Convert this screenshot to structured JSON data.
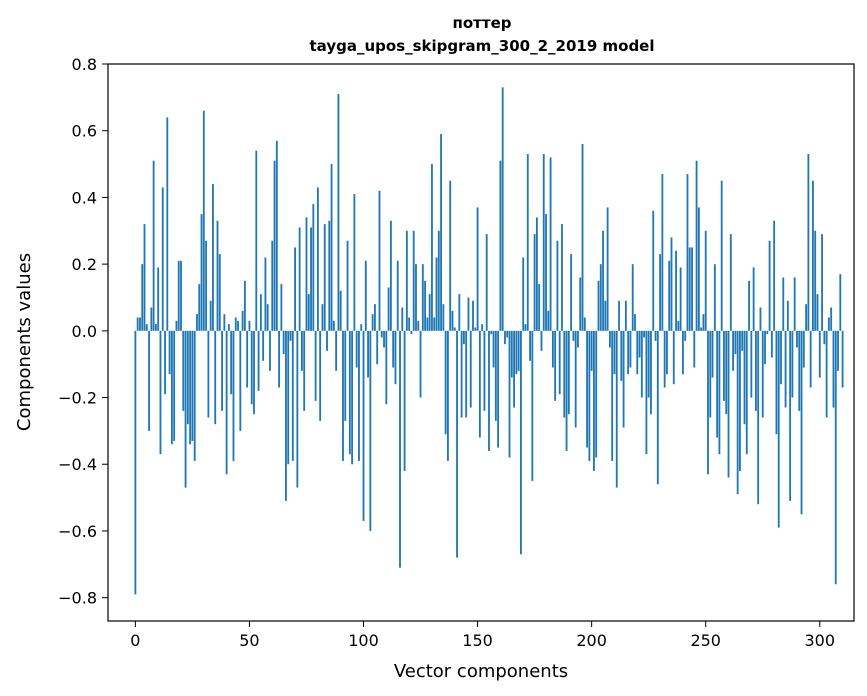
{
  "chart_data": {
    "type": "bar",
    "title_line1": "поттер",
    "title_line2": "tayga_upos_skipgram_300_2_2019 model",
    "xlabel": "Vector components",
    "ylabel": "Components values",
    "xlim": [
      -12,
      315
    ],
    "ylim": [
      -0.87,
      0.8
    ],
    "xticks": [
      0,
      50,
      100,
      150,
      200,
      250,
      300
    ],
    "xtick_labels": [
      "0",
      "50",
      "100",
      "150",
      "200",
      "250",
      "300"
    ],
    "yticks": [
      0.8,
      0.6,
      0.4,
      0.2,
      0.0,
      -0.2,
      -0.4,
      -0.6,
      -0.8
    ],
    "ytick_labels": [
      "0.8",
      "0.6",
      "0.4",
      "0.2",
      "0.0",
      "−0.2",
      "−0.4",
      "−0.6",
      "−0.8"
    ],
    "bar_color": "#1f77b4",
    "values": [
      -0.79,
      0.04,
      0.04,
      0.2,
      0.32,
      0.02,
      -0.3,
      0.07,
      0.51,
      0.02,
      0.19,
      -0.37,
      0.43,
      -0.19,
      0.64,
      -0.13,
      -0.34,
      -0.33,
      0.03,
      0.21,
      0.21,
      -0.24,
      -0.47,
      -0.28,
      -0.34,
      -0.33,
      -0.39,
      0.05,
      0.14,
      0.35,
      0.66,
      0.27,
      -0.26,
      0.09,
      0.44,
      -0.28,
      0.33,
      0.23,
      -0.24,
      0.05,
      -0.43,
      0.02,
      -0.19,
      -0.39,
      0.04,
      0.03,
      -0.3,
      0.06,
      0.15,
      -0.17,
      0.03,
      -0.22,
      -0.25,
      0.54,
      -0.18,
      0.11,
      -0.09,
      0.22,
      0.08,
      -0.12,
      0.27,
      0.51,
      0.57,
      -0.17,
      0.14,
      -0.07,
      -0.51,
      -0.4,
      -0.03,
      -0.39,
      0.25,
      -0.47,
      0.31,
      -0.12,
      -0.24,
      0.34,
      0.11,
      0.31,
      0.38,
      -0.21,
      0.43,
      -0.27,
      0.08,
      0.32,
      -0.06,
      0.33,
      0.5,
      0.03,
      -0.12,
      0.71,
      0.12,
      -0.39,
      -0.27,
      0.27,
      -0.37,
      -0.4,
      0.41,
      -0.11,
      -0.39,
      0.02,
      -0.57,
      0.21,
      -0.14,
      -0.6,
      0.05,
      0.08,
      -0.1,
      0.42,
      -0.02,
      -0.05,
      -0.22,
      0.13,
      0.33,
      -0.11,
      -0.16,
      0.21,
      -0.71,
      0.07,
      -0.42,
      0.3,
      0.04,
      -0.01,
      0.3,
      0.2,
      0.03,
      -0.2,
      0.2,
      0.15,
      0.04,
      0.11,
      0.5,
      0.04,
      0.22,
      0.3,
      0.59,
      0.08,
      -0.31,
      -0.39,
      0.45,
      0.06,
      0.01,
      -0.68,
      0.11,
      -0.26,
      -0.04,
      -0.26,
      0.1,
      -0.23,
      0.09,
      0.01,
      0.37,
      -0.32,
      0.02,
      -0.24,
      0.29,
      -0.36,
      -0.01,
      -0.11,
      -0.27,
      -0.35,
      0.51,
      0.73,
      -0.04,
      -0.02,
      -0.38,
      -0.14,
      -0.23,
      -0.13,
      -0.12,
      -0.67,
      0.22,
      0.02,
      0.53,
      -0.09,
      -0.45,
      0.29,
      0.34,
      0.14,
      -0.06,
      0.53,
      0.35,
      0.06,
      0.52,
      -0.11,
      -0.21,
      0.27,
      -0.19,
      0.32,
      -0.26,
      -0.36,
      -0.25,
      0.23,
      -0.03,
      -0.29,
      -0.05,
      0.16,
      0.56,
      0.04,
      -0.35,
      -0.39,
      -0.12,
      -0.42,
      -0.38,
      0.15,
      0.2,
      0.3,
      0.09,
      0.37,
      -0.05,
      -0.39,
      -0.13,
      -0.47,
      0.09,
      -0.15,
      -0.29,
      0.09,
      -0.13,
      -0.11,
      0.2,
      0.05,
      -0.13,
      -0.08,
      -0.2,
      -0.02,
      -0.37,
      -0.2,
      -0.25,
      0.36,
      -0.03,
      -0.46,
      0.23,
      0.47,
      -0.17,
      -0.13,
      0.21,
      0.28,
      -0.16,
      0.24,
      0.03,
      0.19,
      -0.13,
      -0.03,
      0.47,
      0.25,
      0.25,
      -0.11,
      0.51,
      0.37,
      0.01,
      0.05,
      0.3,
      -0.43,
      -0.26,
      -0.14,
      0.2,
      -0.32,
      -0.37,
      0.45,
      -0.21,
      -0.25,
      -0.44,
      0.29,
      -0.12,
      -0.07,
      -0.49,
      -0.42,
      -0.06,
      -0.28,
      -0.37,
      0.15,
      -0.2,
      0.19,
      -0.24,
      -0.52,
      0.07,
      -0.26,
      -0.1,
      -0.01,
      0.27,
      -0.08,
      0.33,
      -0.31,
      -0.59,
      -0.16,
      0.16,
      -0.23,
      0.09,
      -0.51,
      -0.2,
      0.16,
      -0.05,
      -0.24,
      -0.55,
      -0.11,
      0.08,
      0.53,
      -0.17,
      0.45,
      0.3,
      0.11,
      -0.14,
      0.29,
      -0.04,
      -0.26,
      0.04,
      0.07,
      -0.23,
      -0.76,
      -0.12,
      0.17,
      -0.17
    ]
  }
}
